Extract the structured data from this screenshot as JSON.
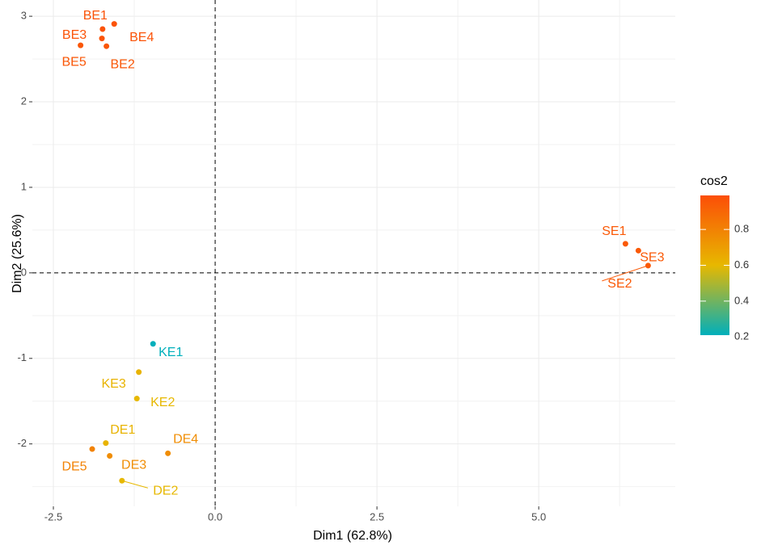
{
  "chart_data": {
    "type": "scatter",
    "x_label": "Dim1 (62.8%)",
    "y_label": "Dim2 (25.6%)",
    "labels": [
      "BE1",
      "BE2",
      "BE3",
      "BE4",
      "BE5",
      "SE1",
      "SE2",
      "SE3",
      "KE1",
      "KE2",
      "KE3",
      "DE1",
      "DE2",
      "DE3",
      "DE4",
      "DE5"
    ],
    "x": [
      -1.74,
      -1.68,
      -1.75,
      -1.56,
      -2.08,
      6.34,
      6.69,
      6.54,
      -0.96,
      -1.21,
      -1.18,
      -1.69,
      -1.44,
      -1.63,
      -0.73,
      -1.9
    ],
    "y": [
      2.85,
      2.65,
      2.74,
      2.91,
      2.66,
      0.34,
      0.085,
      0.26,
      -0.83,
      -1.47,
      -1.16,
      -1.99,
      -2.43,
      -2.14,
      -2.11,
      -2.06
    ],
    "cos2": [
      0.97,
      0.96,
      0.97,
      0.97,
      0.96,
      0.95,
      0.95,
      0.95,
      0.2,
      0.6,
      0.62,
      0.62,
      0.6,
      0.76,
      0.76,
      0.8
    ],
    "xlim": [
      -2.825,
      7.11
    ],
    "ylim": [
      -2.73,
      3.19
    ],
    "xticks": [
      {
        "value": -2.5,
        "label": "-2.5"
      },
      {
        "value": 0,
        "label": "0.0"
      },
      2.5,
      {
        "value": 5,
        "label": "5.0"
      }
    ],
    "yticks": [
      -2,
      -1,
      0,
      1,
      2,
      3
    ],
    "hline": 0,
    "vline": 0,
    "grid": true,
    "legend_title": "cos2",
    "colorlim": [
      0.21,
      0.99
    ],
    "colorticks": [
      0.2,
      0.4,
      0.6,
      0.8
    ],
    "gradient": [
      "#00AFBB",
      "#E7B800",
      "#FC4E07"
    ]
  }
}
